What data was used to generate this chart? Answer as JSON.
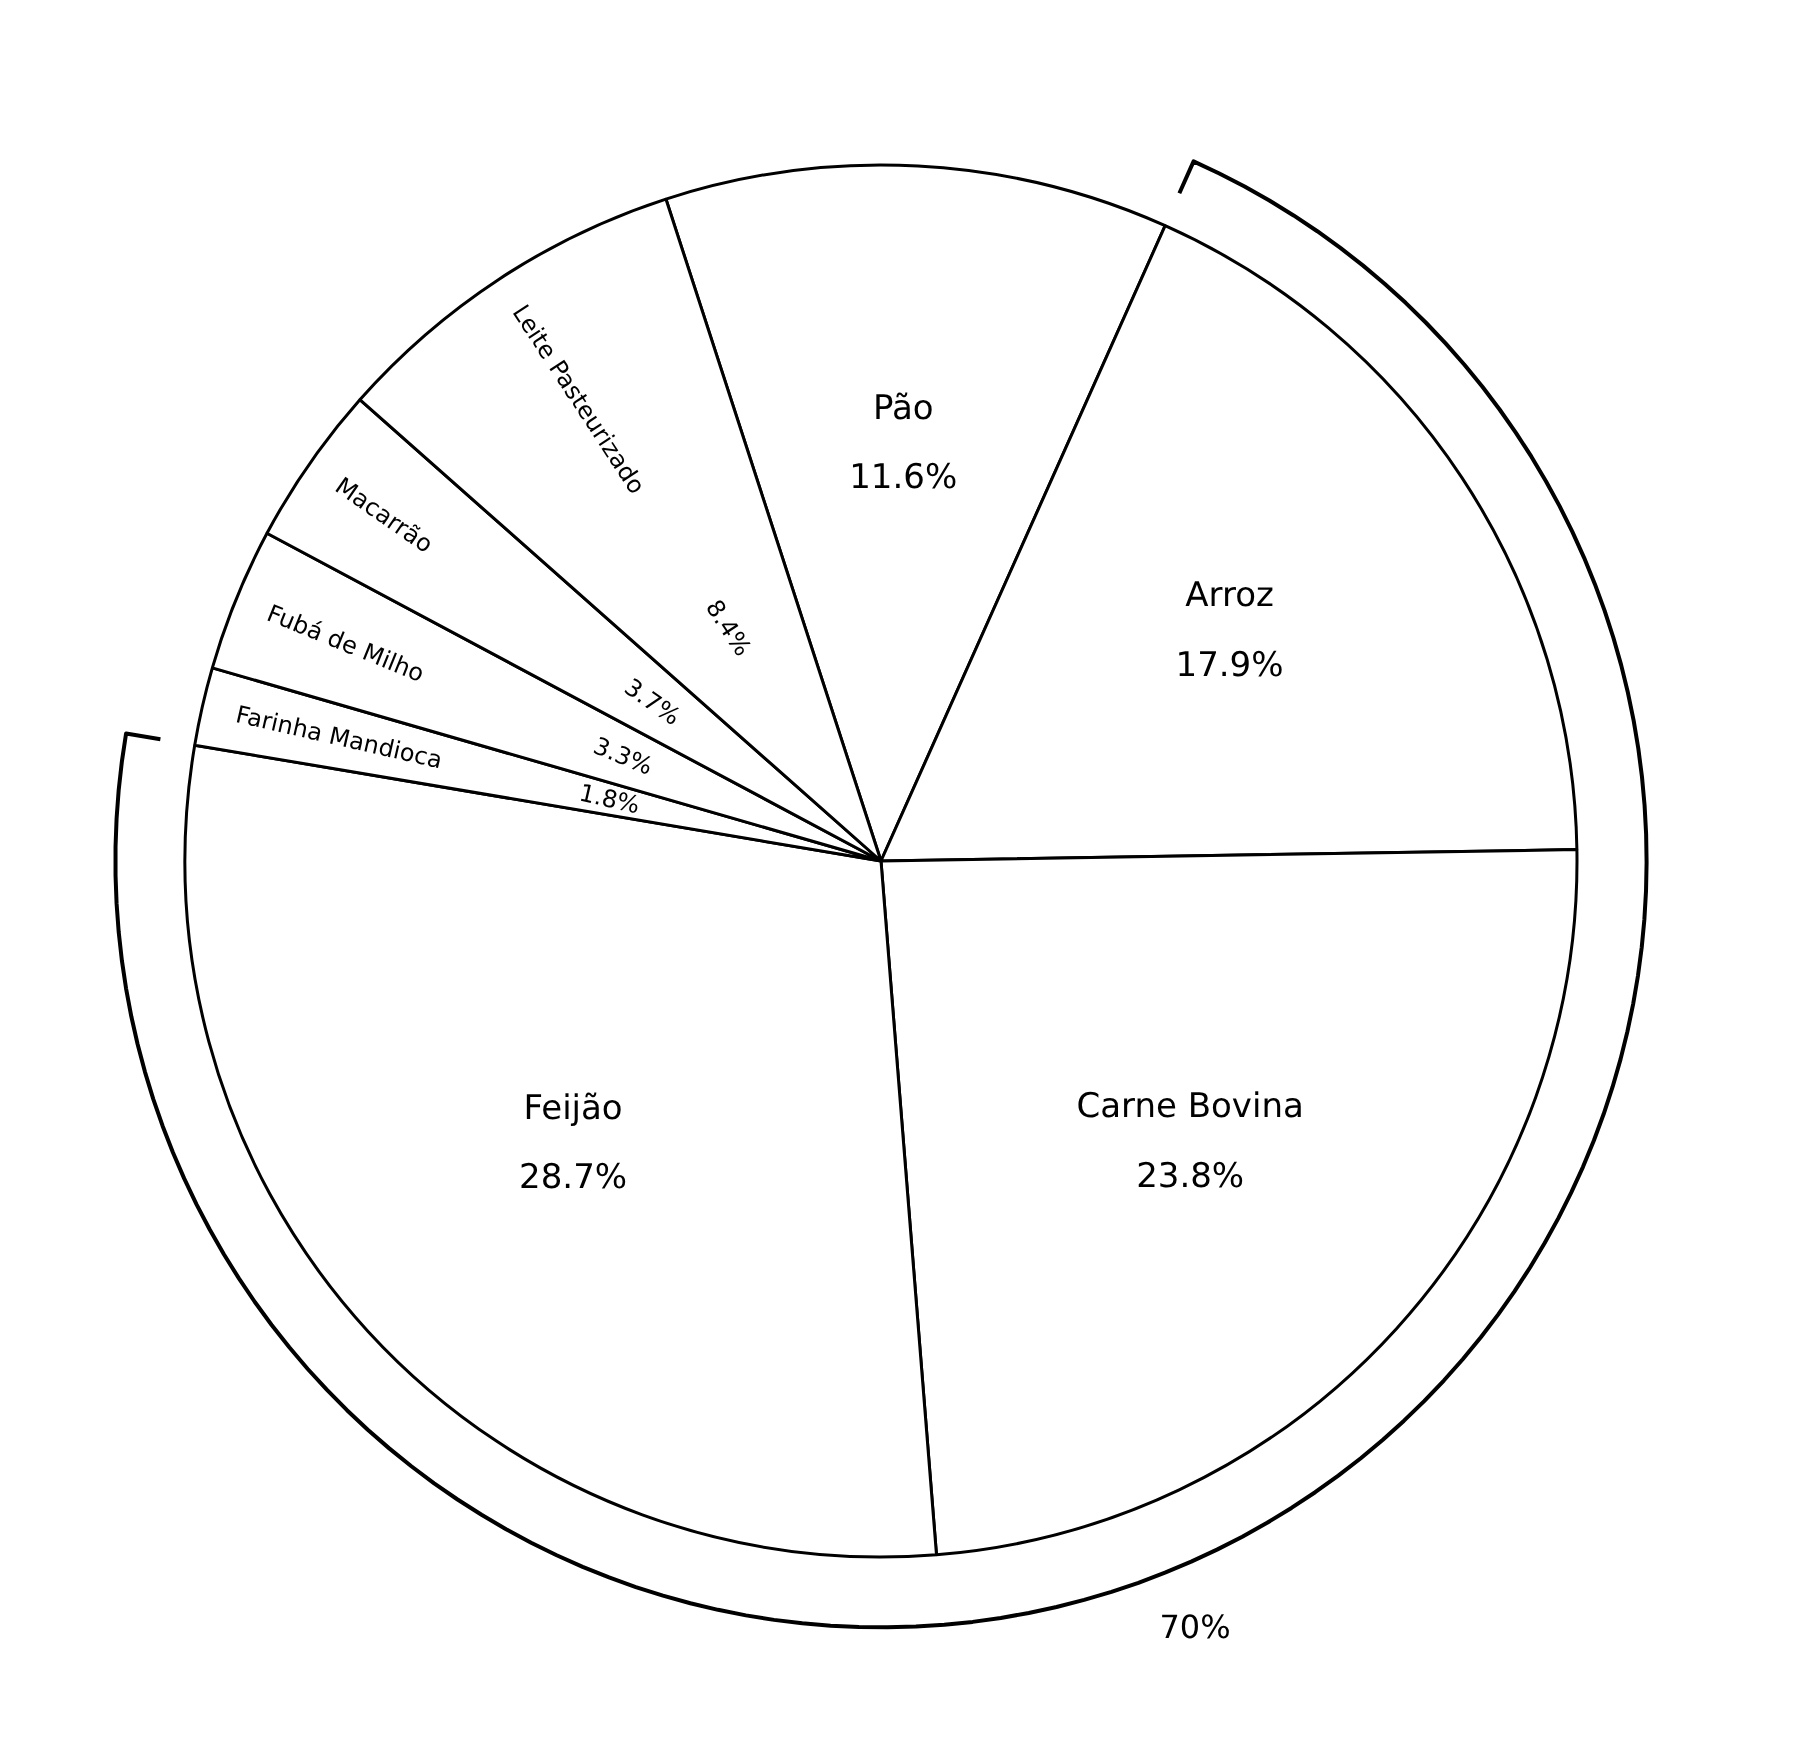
{
  "chart_data": {
    "type": "pie",
    "categories": [
      "Pão",
      "Arroz",
      "Carne Bovina",
      "Feijão",
      "Farinha Mandioca",
      "Fubá de Milho",
      "Macarrão",
      "Leite Pasteurizado"
    ],
    "values": [
      11.6,
      17.9,
      23.8,
      28.7,
      1.8,
      3.3,
      3.7,
      8.4
    ],
    "colors": [
      "#ffffff",
      "#ffffff",
      "#ffffff",
      "#ffffff",
      "#ffffff",
      "#ffffff",
      "#ffffff",
      "#ffffff"
    ],
    "value_labels": [
      "11.6%",
      "17.9%",
      "23.8%",
      "28.7%",
      "1.8%",
      "3.3%",
      "3.7%",
      "8.4%"
    ],
    "annotations": [
      "70%"
    ]
  }
}
